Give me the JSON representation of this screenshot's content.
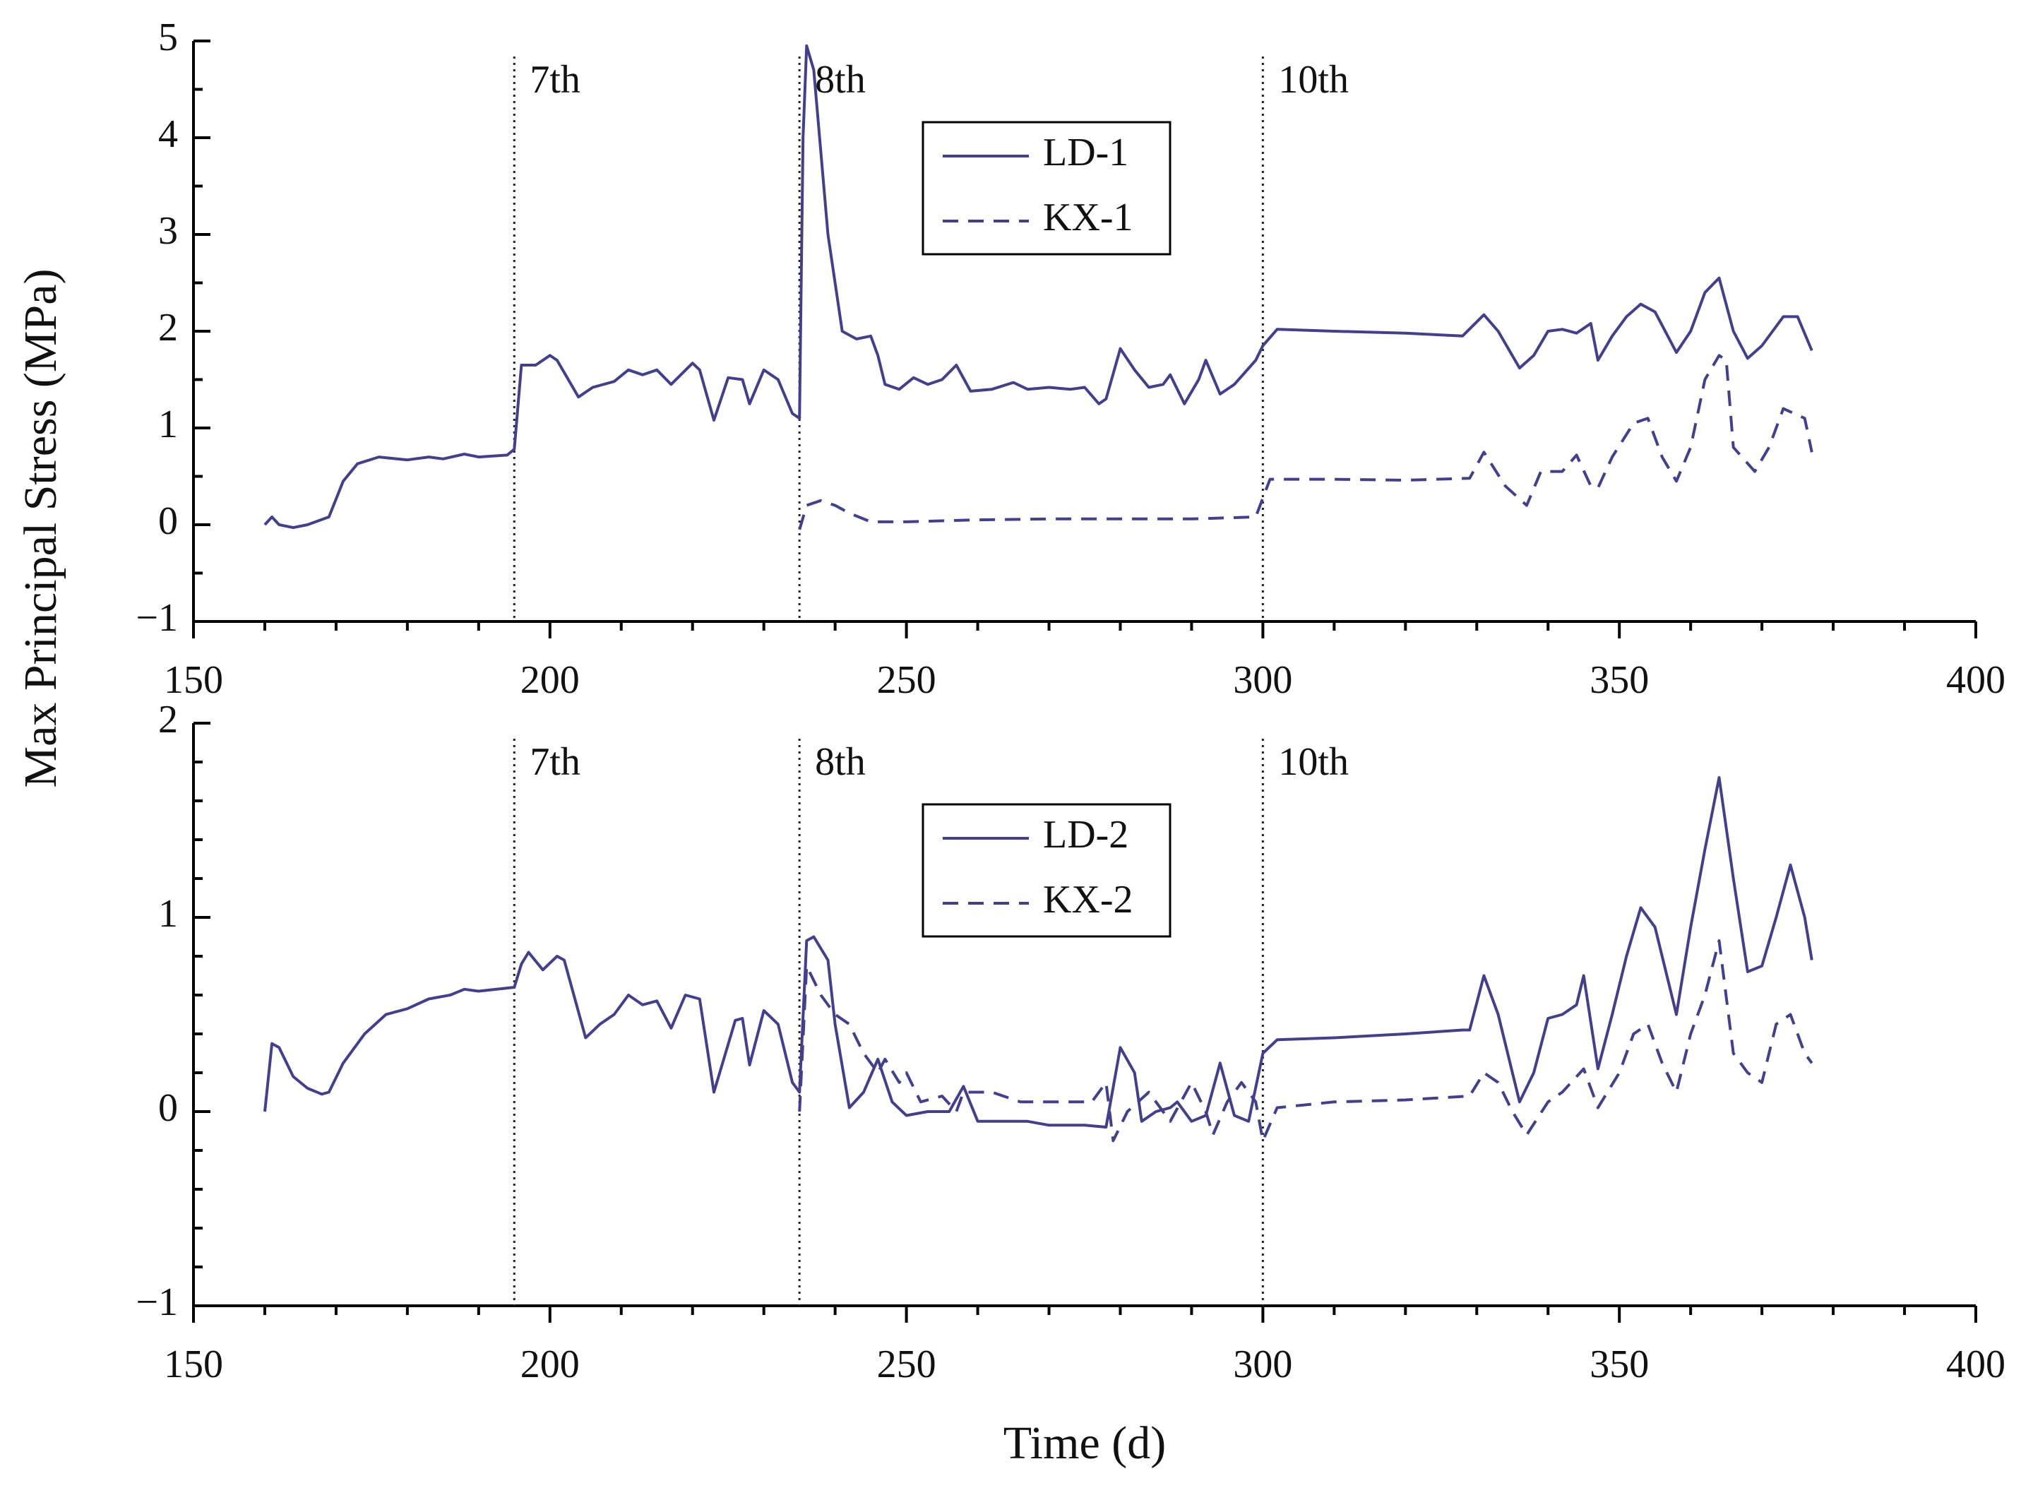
{
  "chart_data": [
    {
      "type": "line",
      "ylabel": "Max Principal Stress (MPa)",
      "xlim": [
        150,
        400
      ],
      "ylim": [
        -1,
        5
      ],
      "xticks": [
        150,
        200,
        250,
        300,
        350,
        400
      ],
      "xminorticks": [
        160,
        170,
        180,
        190,
        210,
        220,
        230,
        240,
        260,
        270,
        280,
        290,
        310,
        320,
        330,
        340,
        360,
        370,
        380,
        390
      ],
      "yticks": [
        {
          "value": -1,
          "label": "−1"
        },
        0,
        1,
        2,
        3,
        4,
        5
      ],
      "yminorticks": [
        -0.5,
        0.5,
        1.5,
        2.5,
        3.5,
        4.5
      ],
      "legend": "upper center",
      "annotations": [
        {
          "x": 195,
          "label": "7th"
        },
        {
          "x": 235,
          "label": "8th"
        },
        {
          "x": 300,
          "label": "10th"
        }
      ],
      "series": [
        {
          "name": "LD-1",
          "color": "#433f8e",
          "dash": false,
          "x": [
            160,
            161,
            162,
            164,
            166,
            169,
            171,
            173,
            176,
            180,
            183,
            185,
            188,
            190,
            194,
            195,
            196,
            198,
            200,
            201,
            204,
            206,
            209,
            211,
            213,
            215,
            217,
            220,
            221,
            223,
            225,
            227,
            228,
            230,
            232,
            234,
            235,
            235.5,
            236,
            237,
            239,
            241,
            243,
            245,
            246,
            247,
            249,
            251,
            253,
            255,
            257,
            259,
            262,
            265,
            267,
            270,
            273,
            275,
            277,
            278,
            280,
            282,
            284,
            286,
            287,
            289,
            291,
            292,
            294,
            296,
            299,
            300,
            302,
            310,
            320,
            328,
            331,
            333,
            336,
            338,
            340,
            342,
            344,
            346,
            347,
            349,
            351,
            353,
            355,
            358,
            360,
            362,
            364,
            366,
            368,
            370,
            373,
            375,
            377
          ],
          "values": [
            0,
            0.08,
            0,
            -0.03,
            0,
            0.08,
            0.45,
            0.63,
            0.7,
            0.67,
            0.7,
            0.68,
            0.73,
            0.7,
            0.72,
            0.78,
            1.65,
            1.65,
            1.75,
            1.7,
            1.32,
            1.42,
            1.48,
            1.6,
            1.55,
            1.6,
            1.45,
            1.67,
            1.6,
            1.08,
            1.52,
            1.5,
            1.25,
            1.6,
            1.5,
            1.15,
            1.1,
            4.0,
            4.95,
            4.7,
            3.0,
            2.0,
            1.92,
            1.95,
            1.75,
            1.45,
            1.4,
            1.52,
            1.45,
            1.5,
            1.65,
            1.38,
            1.4,
            1.47,
            1.4,
            1.42,
            1.4,
            1.42,
            1.25,
            1.3,
            1.82,
            1.6,
            1.42,
            1.45,
            1.55,
            1.25,
            1.5,
            1.7,
            1.35,
            1.45,
            1.7,
            1.85,
            2.02,
            2.0,
            1.98,
            1.95,
            2.17,
            2.0,
            1.62,
            1.75,
            2.0,
            2.02,
            1.98,
            2.08,
            1.7,
            1.95,
            2.15,
            2.28,
            2.2,
            1.78,
            2.0,
            2.4,
            2.55,
            2.0,
            1.72,
            1.85,
            2.15,
            2.15,
            1.8
          ]
        },
        {
          "name": "KX-1",
          "color": "#433f8e",
          "dash": true,
          "x": [
            235,
            236,
            238,
            240,
            242,
            245,
            250,
            260,
            270,
            280,
            290,
            299,
            301,
            310,
            320,
            329,
            331,
            334,
            337,
            339,
            342,
            344,
            346,
            347,
            349,
            352,
            354,
            356,
            358,
            360,
            362,
            364,
            365,
            366,
            369,
            371,
            373,
            376,
            377
          ],
          "values": [
            -0.05,
            0.2,
            0.25,
            0.2,
            0.12,
            0.03,
            0.03,
            0.05,
            0.06,
            0.06,
            0.06,
            0.08,
            0.47,
            0.47,
            0.46,
            0.48,
            0.75,
            0.4,
            0.2,
            0.55,
            0.55,
            0.72,
            0.4,
            0.38,
            0.7,
            1.05,
            1.1,
            0.7,
            0.45,
            0.8,
            1.5,
            1.75,
            1.7,
            0.8,
            0.55,
            0.8,
            1.2,
            1.1,
            0.75
          ]
        }
      ]
    },
    {
      "type": "line",
      "xlabel": "Time (d)",
      "xlim": [
        150,
        400
      ],
      "ylim": [
        -1,
        2
      ],
      "xticks": [
        150,
        200,
        250,
        300,
        350,
        400
      ],
      "xminorticks": [
        160,
        170,
        180,
        190,
        210,
        220,
        230,
        240,
        260,
        270,
        280,
        290,
        310,
        320,
        330,
        340,
        360,
        370,
        380,
        390
      ],
      "yticks": [
        {
          "value": -1,
          "label": "−1"
        },
        0,
        1,
        2
      ],
      "yminorticks": [
        -0.8,
        -0.6,
        -0.4,
        -0.2,
        0.2,
        0.4,
        0.6,
        0.8,
        1.2,
        1.4,
        1.6,
        1.8
      ],
      "legend": "upper center",
      "annotations": [
        {
          "x": 195,
          "label": "7th"
        },
        {
          "x": 235,
          "label": "8th"
        },
        {
          "x": 300,
          "label": "10th"
        }
      ],
      "series": [
        {
          "name": "LD-2",
          "color": "#433f8e",
          "dash": false,
          "x": [
            160,
            161,
            162,
            164,
            166,
            168,
            169,
            171,
            174,
            177,
            180,
            183,
            186,
            188,
            190,
            195,
            196,
            197,
            199,
            201,
            202,
            205,
            207,
            209,
            211,
            213,
            215,
            217,
            219,
            221,
            223,
            226,
            227,
            228,
            230,
            232,
            234,
            235,
            236,
            237,
            239,
            240,
            242,
            244,
            246,
            248,
            250,
            253,
            256,
            258,
            260,
            265,
            267,
            270,
            275,
            278,
            280,
            282,
            283,
            285,
            287,
            288,
            290,
            292,
            294,
            296,
            298,
            300,
            302,
            310,
            320,
            328,
            329,
            331,
            333,
            336,
            338,
            340,
            342,
            344,
            345,
            347,
            349,
            351,
            353,
            355,
            358,
            360,
            362,
            364,
            366,
            368,
            370,
            372,
            374,
            376,
            377
          ],
          "values": [
            0,
            0.35,
            0.33,
            0.18,
            0.12,
            0.09,
            0.1,
            0.25,
            0.4,
            0.5,
            0.53,
            0.58,
            0.6,
            0.63,
            0.62,
            0.64,
            0.76,
            0.82,
            0.73,
            0.8,
            0.78,
            0.38,
            0.45,
            0.5,
            0.6,
            0.55,
            0.57,
            0.43,
            0.6,
            0.58,
            0.1,
            0.47,
            0.48,
            0.24,
            0.52,
            0.45,
            0.15,
            0.1,
            0.88,
            0.9,
            0.78,
            0.45,
            0.02,
            0.1,
            0.27,
            0.05,
            -0.02,
            0,
            0,
            0.13,
            -0.05,
            -0.05,
            -0.05,
            -0.07,
            -0.07,
            -0.08,
            0.33,
            0.2,
            -0.05,
            0,
            0.02,
            0.05,
            -0.05,
            -0.02,
            0.25,
            -0.02,
            -0.05,
            0.3,
            0.37,
            0.38,
            0.4,
            0.42,
            0.42,
            0.7,
            0.5,
            0.05,
            0.2,
            0.48,
            0.5,
            0.55,
            0.7,
            0.22,
            0.5,
            0.8,
            1.05,
            0.95,
            0.5,
            0.95,
            1.35,
            1.72,
            1.2,
            0.72,
            0.75,
            1.0,
            1.27,
            1.0,
            0.78
          ]
        },
        {
          "name": "KX-2",
          "color": "#433f8e",
          "dash": true,
          "x": [
            235,
            236,
            238,
            240,
            242,
            244,
            246,
            247,
            249,
            250,
            252,
            255,
            257,
            258,
            262,
            266,
            269,
            272,
            276,
            278,
            279,
            281,
            284,
            287,
            290,
            292,
            293,
            295,
            297,
            299,
            300,
            302,
            310,
            320,
            329,
            331,
            333,
            335,
            337,
            340,
            342,
            345,
            347,
            350,
            352,
            354,
            356,
            358,
            360,
            362,
            364,
            366,
            368,
            370,
            372,
            374,
            376,
            377
          ],
          "values": [
            0,
            0.75,
            0.6,
            0.5,
            0.45,
            0.3,
            0.2,
            0.27,
            0.15,
            0.2,
            0.05,
            0.08,
            0,
            0.1,
            0.1,
            0.05,
            0.05,
            0.05,
            0.05,
            0.15,
            -0.15,
            0,
            0.1,
            -0.05,
            0.15,
            0,
            -0.12,
            0.05,
            0.15,
            0.05,
            -0.15,
            0.02,
            0.05,
            0.06,
            0.08,
            0.2,
            0.15,
            0,
            -0.12,
            0.05,
            0.1,
            0.22,
            0.02,
            0.2,
            0.4,
            0.45,
            0.25,
            0.1,
            0.4,
            0.6,
            0.88,
            0.3,
            0.2,
            0.15,
            0.45,
            0.5,
            0.3,
            0.25
          ]
        }
      ]
    }
  ]
}
